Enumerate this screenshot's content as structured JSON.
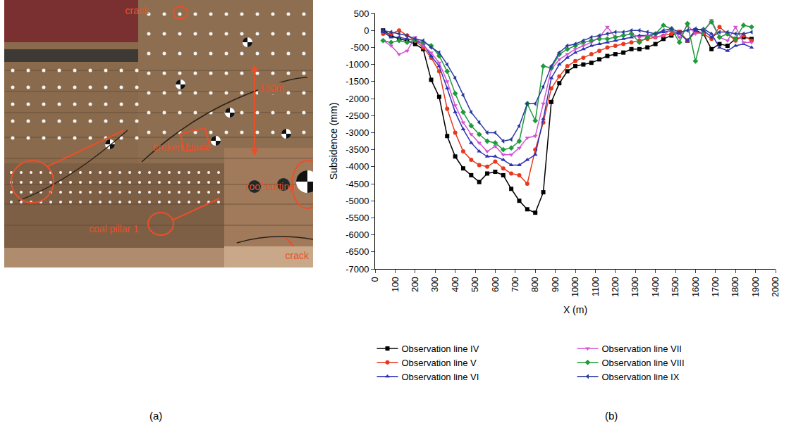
{
  "panel_labels": [
    "(a)",
    "(b)"
  ],
  "figure_a": {
    "type": "photo",
    "labels": [
      "crack",
      "130m",
      "broken block",
      "coal pillar 1",
      "roof cutting",
      "crack"
    ]
  },
  "chart_data": {
    "type": "line",
    "x_label": "X (m)",
    "y_label": "Subsidence (mm)",
    "x": [
      40,
      80,
      120,
      160,
      200,
      240,
      280,
      320,
      360,
      400,
      440,
      480,
      520,
      560,
      600,
      640,
      680,
      720,
      760,
      800,
      840,
      880,
      920,
      960,
      1000,
      1040,
      1080,
      1120,
      1160,
      1200,
      1240,
      1280,
      1320,
      1360,
      1400,
      1440,
      1480,
      1520,
      1560,
      1600,
      1640,
      1680,
      1720,
      1760,
      1800,
      1840,
      1880
    ],
    "xlim": [
      0,
      2000
    ],
    "xticks": [
      0,
      100,
      200,
      300,
      400,
      500,
      600,
      700,
      800,
      900,
      1000,
      1100,
      1200,
      1300,
      1400,
      1500,
      1600,
      1700,
      1800,
      1900,
      2000
    ],
    "ylim": [
      -7000,
      500
    ],
    "yticks": [
      -7000,
      -6500,
      -6000,
      -5500,
      -5000,
      -4500,
      -4000,
      -3500,
      -3000,
      -2500,
      -2000,
      -1500,
      -1000,
      -500,
      0,
      500
    ],
    "grid": false,
    "legend": "bottom",
    "series": [
      {
        "name": "Observation line IV",
        "color": "#000000",
        "marker": "square",
        "values": [
          0,
          -150,
          -250,
          -300,
          -400,
          -550,
          -1450,
          -1950,
          -3100,
          -3700,
          -4050,
          -4250,
          -4450,
          -4200,
          -4150,
          -4250,
          -4650,
          -5000,
          -5250,
          -5350,
          -4750,
          -2100,
          -1550,
          -1200,
          -1050,
          -1000,
          -950,
          -850,
          -750,
          -700,
          -650,
          -550,
          -550,
          -500,
          -400,
          -250,
          -150,
          -50,
          -300,
          0,
          -100,
          -550,
          -400,
          -450,
          -250,
          -200,
          -250
        ]
      },
      {
        "name": "Observation line V",
        "color": "#e8391e",
        "marker": "circle",
        "values": [
          -100,
          -100,
          0,
          -150,
          -300,
          -500,
          -800,
          -1200,
          -2300,
          -3000,
          -3550,
          -3800,
          -3950,
          -4000,
          -3850,
          -4050,
          -4200,
          -4250,
          -4500,
          -3500,
          -2700,
          -1700,
          -1350,
          -1050,
          -900,
          -800,
          -700,
          -600,
          -500,
          -450,
          -400,
          -350,
          -300,
          -250,
          -200,
          -150,
          -100,
          -50,
          -300,
          -50,
          -100,
          -250,
          100,
          -100,
          -300,
          -150,
          -300
        ]
      },
      {
        "name": "Observation line VI",
        "color": "#2e32b4",
        "marker": "triangle-up",
        "values": [
          -50,
          -200,
          -200,
          -250,
          -300,
          -400,
          -750,
          -1050,
          -1700,
          -2400,
          -2900,
          -3300,
          -3550,
          -3700,
          -3700,
          -3800,
          -3950,
          -3950,
          -3800,
          -3650,
          -2600,
          -1400,
          -1000,
          -800,
          -650,
          -550,
          -450,
          -400,
          -350,
          -300,
          -250,
          -200,
          -150,
          -150,
          -100,
          -50,
          0,
          -100,
          -300,
          0,
          50,
          -100,
          -500,
          -600,
          -450,
          -400,
          -500
        ]
      },
      {
        "name": "Observation line VII",
        "color": "#d452d4",
        "marker": "triangle-down",
        "values": [
          -300,
          -450,
          -700,
          -600,
          -200,
          -450,
          -650,
          -950,
          -1500,
          -2200,
          -2700,
          -3050,
          -3300,
          -3550,
          -3400,
          -3650,
          -3650,
          -3450,
          -3150,
          -3100,
          -2150,
          -1150,
          -850,
          -700,
          -550,
          -450,
          -350,
          -200,
          100,
          -200,
          -150,
          -100,
          -200,
          -150,
          -200,
          -150,
          50,
          -200,
          150,
          -100,
          -50,
          300,
          -200,
          -300,
          100,
          -350,
          -350
        ]
      },
      {
        "name": "Observation line VIII",
        "color": "#1e9b3c",
        "marker": "diamond",
        "values": [
          -300,
          -350,
          -300,
          -350,
          -300,
          -350,
          -450,
          -750,
          -1200,
          -1850,
          -2400,
          -2800,
          -3050,
          -3250,
          -3300,
          -3500,
          -3450,
          -3250,
          -2150,
          -2650,
          -1050,
          -1100,
          -700,
          -550,
          -450,
          -350,
          -300,
          -250,
          -250,
          -200,
          -150,
          -100,
          -350,
          -200,
          -100,
          150,
          50,
          -350,
          200,
          -900,
          0,
          250,
          -200,
          -100,
          -250,
          150,
          100
        ]
      },
      {
        "name": "Observation line IX",
        "color": "#2b3a9e",
        "marker": "triangle-left",
        "values": [
          0,
          -50,
          -100,
          -150,
          -250,
          -300,
          -500,
          -650,
          -1000,
          -1400,
          -1900,
          -2400,
          -2700,
          -3000,
          -3000,
          -3250,
          -3200,
          -2800,
          -2150,
          -2150,
          -1650,
          -1050,
          -650,
          -450,
          -400,
          -300,
          -200,
          -150,
          -100,
          -50,
          -50,
          0,
          0,
          -50,
          -100,
          0,
          50,
          -50,
          0,
          50,
          0,
          -200,
          -50,
          -50,
          -100,
          -100,
          -50
        ]
      }
    ]
  }
}
